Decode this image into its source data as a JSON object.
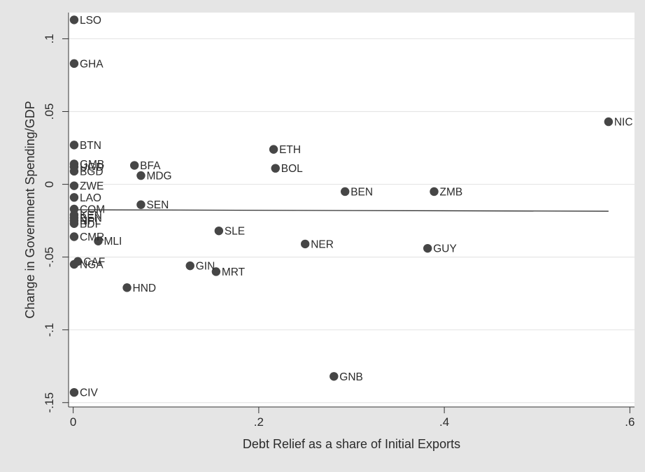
{
  "chart_data": {
    "type": "scatter",
    "title": "",
    "xlabel": "Debt Relief as a share of Initial Exports",
    "ylabel": "Change in Government Spending/GDP",
    "xlim": [
      -0.005,
      0.605
    ],
    "ylim": [
      -0.153,
      0.118
    ],
    "x_ticks": [
      {
        "value": 0,
        "label": "0"
      },
      {
        "value": 0.2,
        "label": ".2"
      },
      {
        "value": 0.4,
        "label": ".4"
      },
      {
        "value": 0.6,
        "label": ".6"
      }
    ],
    "y_ticks": [
      {
        "value": 0.1,
        "label": ".1"
      },
      {
        "value": 0.05,
        "label": ".05"
      },
      {
        "value": 0,
        "label": "0"
      },
      {
        "value": -0.05,
        "label": "-.05"
      },
      {
        "value": -0.1,
        "label": "-.1"
      },
      {
        "value": -0.15,
        "label": "-.15"
      }
    ],
    "grid": "horizontal",
    "legend": "none",
    "colors": {
      "background": "#e5e5e5",
      "plot": "#ffffff",
      "marker": "#464646",
      "line": "#303030",
      "grid": "#e6e6e6"
    },
    "points": [
      {
        "label": "LSO",
        "x": 0.001,
        "y": 0.113
      },
      {
        "label": "GHA",
        "x": 0.001,
        "y": 0.083
      },
      {
        "label": "BTN",
        "x": 0.001,
        "y": 0.027
      },
      {
        "label": "GMB",
        "x": 0.001,
        "y": 0.014
      },
      {
        "label": "UGD",
        "x": 0.001,
        "y": 0.012
      },
      {
        "label": "BGD",
        "x": 0.001,
        "y": 0.009
      },
      {
        "label": "ZWE",
        "x": 0.001,
        "y": -0.001
      },
      {
        "label": "LAO",
        "x": 0.001,
        "y": -0.009
      },
      {
        "label": "COM",
        "x": 0.001,
        "y": -0.017
      },
      {
        "label": "KEN",
        "x": 0.001,
        "y": -0.021
      },
      {
        "label": "BEN",
        "x": 0.001,
        "y": -0.023
      },
      {
        "label": "NPL",
        "x": 0.001,
        "y": -0.025
      },
      {
        "label": "BDI",
        "x": 0.001,
        "y": -0.027
      },
      {
        "label": "CMR",
        "x": 0.001,
        "y": -0.036
      },
      {
        "label": "CAF",
        "x": 0.005,
        "y": -0.053
      },
      {
        "label": "NGA",
        "x": 0.001,
        "y": -0.055
      },
      {
        "label": "CIV",
        "x": 0.001,
        "y": -0.143
      },
      {
        "label": "MLI",
        "x": 0.027,
        "y": -0.039
      },
      {
        "label": "BFA",
        "x": 0.066,
        "y": 0.013
      },
      {
        "label": "MDG",
        "x": 0.073,
        "y": 0.006
      },
      {
        "label": "SEN",
        "x": 0.073,
        "y": -0.014
      },
      {
        "label": "HND",
        "x": 0.058,
        "y": -0.071
      },
      {
        "label": "GIN",
        "x": 0.126,
        "y": -0.056
      },
      {
        "label": "MRT",
        "x": 0.154,
        "y": -0.06
      },
      {
        "label": "SLE",
        "x": 0.157,
        "y": -0.032
      },
      {
        "label": "ETH",
        "x": 0.216,
        "y": 0.024
      },
      {
        "label": "BOL",
        "x": 0.218,
        "y": 0.011
      },
      {
        "label": "NER",
        "x": 0.25,
        "y": -0.041
      },
      {
        "label": "GNB",
        "x": 0.281,
        "y": -0.132
      },
      {
        "label": "BEN",
        "x": 0.293,
        "y": -0.005
      },
      {
        "label": "ZMB",
        "x": 0.389,
        "y": -0.005
      },
      {
        "label": "GUY",
        "x": 0.382,
        "y": -0.044
      },
      {
        "label": "NIC",
        "x": 0.577,
        "y": 0.043
      }
    ],
    "fit_line": {
      "x": [
        0.001,
        0.577
      ],
      "y": [
        -0.0175,
        -0.0185
      ]
    }
  }
}
